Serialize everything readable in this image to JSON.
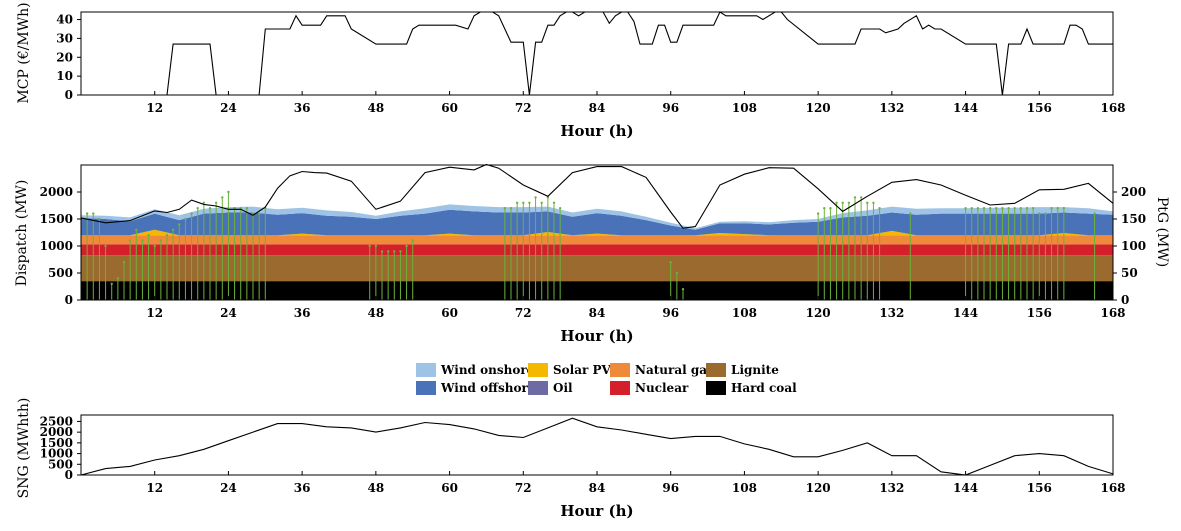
{
  "chart_data": [
    {
      "type": "line",
      "xlabel": "Hour (h)",
      "ylabel": "MCP (€/MWh)",
      "xlim": [
        0,
        168
      ],
      "ylim": [
        0,
        44
      ],
      "xticks": [
        12,
        24,
        36,
        48,
        60,
        72,
        84,
        96,
        108,
        120,
        132,
        144,
        156,
        168
      ],
      "yticks": [
        0,
        10,
        20,
        30,
        40
      ],
      "grid": false,
      "series": [
        {
          "color": "#000000",
          "x": [
            0,
            14,
            15,
            21,
            22,
            29,
            30,
            34,
            35,
            36,
            39,
            40,
            41,
            43,
            44,
            48,
            53,
            54,
            55,
            60,
            61,
            63,
            64,
            65,
            67,
            68,
            70,
            71,
            72,
            73,
            74,
            75,
            76,
            77,
            78,
            79,
            80,
            81,
            82,
            84,
            85,
            86,
            87,
            88,
            89,
            90,
            91,
            93,
            94,
            95,
            96,
            97,
            98,
            102,
            103,
            104,
            105,
            107,
            108,
            110,
            111,
            113,
            114,
            115,
            120,
            126,
            127,
            130,
            131,
            133,
            134,
            136,
            137,
            138,
            139,
            140,
            144,
            149,
            150,
            151,
            152,
            153,
            154,
            155,
            156,
            160,
            161,
            162,
            163,
            164,
            165,
            168
          ],
          "y": [
            0,
            0,
            27,
            27,
            0,
            0,
            35,
            35,
            42,
            37,
            37,
            42,
            42,
            42,
            35,
            27,
            27,
            35,
            37,
            37,
            37,
            35,
            42,
            44,
            44,
            42,
            28,
            28,
            28,
            0,
            28,
            28,
            37,
            37,
            42,
            44,
            44,
            42,
            44,
            44,
            44,
            38,
            42,
            44,
            44,
            39,
            27,
            27,
            37,
            37,
            28,
            28,
            37,
            37,
            37,
            44,
            42,
            42,
            42,
            42,
            40,
            44,
            44,
            40,
            27,
            27,
            35,
            35,
            33,
            35,
            38,
            42,
            35,
            37,
            35,
            35,
            27,
            27,
            0,
            27,
            27,
            27,
            35,
            27,
            27,
            27,
            37,
            37,
            35,
            27,
            27,
            27
          ]
        }
      ]
    },
    {
      "type": "area",
      "xlabel": "Hour (h)",
      "ylabel": "Dispatch (MW)",
      "ylabel_right": "PtG (MW)",
      "xlim": [
        0,
        168
      ],
      "ylim": [
        0,
        2500
      ],
      "ylim_right": [
        0,
        250
      ],
      "xticks": [
        12,
        24,
        36,
        48,
        60,
        72,
        84,
        96,
        108,
        120,
        132,
        144,
        156,
        168
      ],
      "yticks": [
        0,
        500,
        1000,
        1500,
        2000
      ],
      "yticks_right": [
        0,
        50,
        100,
        150,
        200
      ],
      "grid": false,
      "legend_position": "bottom-center",
      "x": [
        0,
        4,
        8,
        12,
        16,
        20,
        24,
        28,
        32,
        36,
        40,
        44,
        48,
        52,
        56,
        60,
        64,
        68,
        72,
        76,
        80,
        84,
        88,
        92,
        96,
        100,
        104,
        108,
        112,
        116,
        120,
        124,
        128,
        132,
        136,
        140,
        144,
        148,
        152,
        156,
        160,
        164,
        168
      ],
      "layers": [
        {
          "name": "Hard coal",
          "color": "#000000",
          "values": [
            350,
            350,
            350,
            350,
            350,
            350,
            350,
            350,
            350,
            350,
            350,
            350,
            350,
            350,
            350,
            350,
            350,
            350,
            350,
            350,
            350,
            350,
            350,
            350,
            350,
            350,
            350,
            350,
            350,
            350,
            350,
            350,
            350,
            350,
            350,
            350,
            350,
            350,
            350,
            350,
            350,
            350,
            350
          ]
        },
        {
          "name": "Lignite",
          "color": "#9a6a2e",
          "values": [
            480,
            480,
            480,
            480,
            480,
            480,
            480,
            480,
            480,
            480,
            480,
            480,
            480,
            480,
            480,
            480,
            480,
            480,
            480,
            480,
            480,
            480,
            480,
            480,
            480,
            480,
            480,
            480,
            480,
            480,
            480,
            480,
            480,
            480,
            480,
            480,
            480,
            480,
            480,
            480,
            480,
            480,
            480
          ]
        },
        {
          "name": "Nuclear",
          "color": "#d4202b",
          "values": [
            200,
            200,
            200,
            200,
            200,
            200,
            200,
            200,
            200,
            200,
            200,
            200,
            200,
            200,
            200,
            200,
            200,
            200,
            200,
            200,
            200,
            200,
            200,
            200,
            200,
            200,
            200,
            200,
            200,
            200,
            200,
            200,
            200,
            200,
            200,
            200,
            200,
            200,
            200,
            200,
            200,
            200,
            200
          ]
        },
        {
          "name": "Natural gas",
          "color": "#ee8a3a",
          "values": [
            170,
            170,
            170,
            170,
            170,
            170,
            170,
            170,
            170,
            170,
            170,
            170,
            170,
            170,
            170,
            170,
            170,
            170,
            170,
            170,
            170,
            170,
            170,
            170,
            170,
            170,
            170,
            170,
            170,
            170,
            170,
            170,
            170,
            170,
            170,
            170,
            170,
            170,
            170,
            170,
            170,
            170,
            170
          ]
        },
        {
          "name": "Solar PV",
          "color": "#f5b800",
          "values": [
            0,
            0,
            0,
            100,
            0,
            0,
            0,
            0,
            0,
            30,
            0,
            0,
            0,
            0,
            0,
            30,
            0,
            0,
            0,
            60,
            0,
            30,
            0,
            0,
            0,
            0,
            40,
            20,
            0,
            0,
            0,
            0,
            0,
            80,
            0,
            0,
            0,
            0,
            0,
            0,
            40,
            0,
            0
          ]
        },
        {
          "name": "Oil",
          "color": "#6e6aa3",
          "values": [
            0,
            0,
            0,
            0,
            0,
            0,
            0,
            0,
            0,
            0,
            0,
            0,
            0,
            0,
            0,
            0,
            0,
            0,
            0,
            0,
            0,
            0,
            0,
            0,
            0,
            0,
            0,
            0,
            0,
            0,
            0,
            0,
            0,
            0,
            0,
            0,
            0,
            0,
            0,
            0,
            0,
            0,
            0
          ]
        },
        {
          "name": "Wind offshore",
          "color": "#4a72b8",
          "values": [
            320,
            300,
            260,
            300,
            280,
            400,
            420,
            420,
            380,
            380,
            360,
            340,
            300,
            360,
            400,
            440,
            440,
            420,
            420,
            380,
            340,
            380,
            360,
            280,
            180,
            100,
            180,
            200,
            200,
            230,
            250,
            330,
            360,
            340,
            380,
            400,
            400,
            400,
            400,
            400,
            380,
            400,
            380
          ]
        },
        {
          "name": "Wind onshore",
          "color": "#9ec3e6",
          "values": [
            50,
            60,
            70,
            80,
            90,
            90,
            100,
            110,
            100,
            100,
            100,
            90,
            60,
            80,
            100,
            100,
            100,
            100,
            100,
            90,
            80,
            80,
            80,
            60,
            50,
            30,
            30,
            40,
            40,
            50,
            50,
            80,
            100,
            110,
            110,
            100,
            100,
            110,
            110,
            120,
            100,
            100,
            60
          ]
        }
      ],
      "ptg": {
        "name": "PtG",
        "color": "#6bb33a",
        "x": [
          1,
          2,
          3,
          4,
          5,
          6,
          7,
          8,
          9,
          10,
          11,
          12,
          13,
          14,
          15,
          16,
          17,
          18,
          19,
          20,
          21,
          22,
          23,
          24,
          25,
          26,
          27,
          28,
          29,
          30,
          47,
          48,
          49,
          50,
          51,
          52,
          53,
          54,
          69,
          70,
          71,
          72,
          73,
          74,
          75,
          76,
          77,
          78,
          96,
          97,
          98,
          120,
          121,
          122,
          123,
          124,
          125,
          126,
          127,
          128,
          129,
          130,
          135,
          144,
          145,
          146,
          147,
          148,
          149,
          150,
          151,
          152,
          153,
          154,
          155,
          156,
          157,
          158,
          159,
          160,
          165
        ],
        "values": [
          160,
          160,
          150,
          100,
          30,
          40,
          70,
          110,
          130,
          110,
          120,
          100,
          110,
          120,
          130,
          140,
          150,
          160,
          170,
          180,
          170,
          180,
          190,
          200,
          170,
          170,
          170,
          160,
          160,
          170,
          100,
          100,
          90,
          90,
          90,
          90,
          100,
          110,
          170,
          170,
          180,
          180,
          180,
          190,
          180,
          190,
          180,
          170,
          70,
          50,
          20,
          160,
          170,
          170,
          180,
          180,
          180,
          190,
          190,
          180,
          180,
          170,
          160,
          170,
          170,
          170,
          170,
          170,
          170,
          170,
          170,
          170,
          170,
          170,
          170,
          160,
          160,
          170,
          170,
          170,
          160
        ]
      },
      "line": {
        "name": "",
        "color": "#000000",
        "x": [
          0,
          4,
          8,
          12,
          14,
          16,
          18,
          20,
          22,
          24,
          26,
          28,
          30,
          32,
          34,
          36,
          38,
          40,
          44,
          48,
          52,
          56,
          60,
          64,
          66,
          68,
          72,
          76,
          80,
          84,
          88,
          92,
          96,
          98,
          100,
          104,
          108,
          112,
          116,
          120,
          124,
          128,
          132,
          136,
          140,
          144,
          148,
          152,
          156,
          160,
          164,
          168
        ],
        "values": [
          1520,
          1430,
          1470,
          1650,
          1620,
          1680,
          1850,
          1770,
          1740,
          1680,
          1680,
          1570,
          1720,
          2070,
          2300,
          2380,
          2360,
          2350,
          2200,
          1680,
          1830,
          2360,
          2460,
          2410,
          2510,
          2440,
          2130,
          1920,
          2360,
          2470,
          2470,
          2270,
          1630,
          1330,
          1360,
          2130,
          2330,
          2450,
          2440,
          2060,
          1640,
          1920,
          2180,
          2230,
          2130,
          1940,
          1760,
          1790,
          2040,
          2050,
          2160,
          1790
        ]
      }
    },
    {
      "type": "line",
      "xlabel": "Hour (h)",
      "ylabel": "SNG (MWhth)",
      "xlim": [
        0,
        168
      ],
      "ylim": [
        0,
        2800
      ],
      "xticks": [
        12,
        24,
        36,
        48,
        60,
        72,
        84,
        96,
        108,
        120,
        132,
        144,
        156,
        168
      ],
      "yticks": [
        0,
        500,
        1000,
        1500,
        2000,
        2500
      ],
      "grid": false,
      "series": [
        {
          "color": "#000000",
          "x": [
            0,
            4,
            8,
            12,
            16,
            20,
            24,
            28,
            32,
            36,
            40,
            44,
            48,
            52,
            56,
            60,
            64,
            68,
            72,
            76,
            80,
            84,
            88,
            92,
            96,
            100,
            104,
            108,
            112,
            116,
            120,
            124,
            128,
            132,
            136,
            140,
            144,
            148,
            152,
            156,
            160,
            164,
            168
          ],
          "y": [
            0,
            300,
            400,
            700,
            900,
            1200,
            1600,
            2000,
            2400,
            2400,
            2250,
            2200,
            2000,
            2200,
            2450,
            2350,
            2150,
            1850,
            1750,
            2200,
            2650,
            2250,
            2100,
            1900,
            1700,
            1800,
            1800,
            1450,
            1200,
            850,
            850,
            1150,
            1500,
            900,
            900,
            150,
            0,
            450,
            900,
            1000,
            900,
            400,
            50
          ]
        }
      ]
    }
  ]
}
